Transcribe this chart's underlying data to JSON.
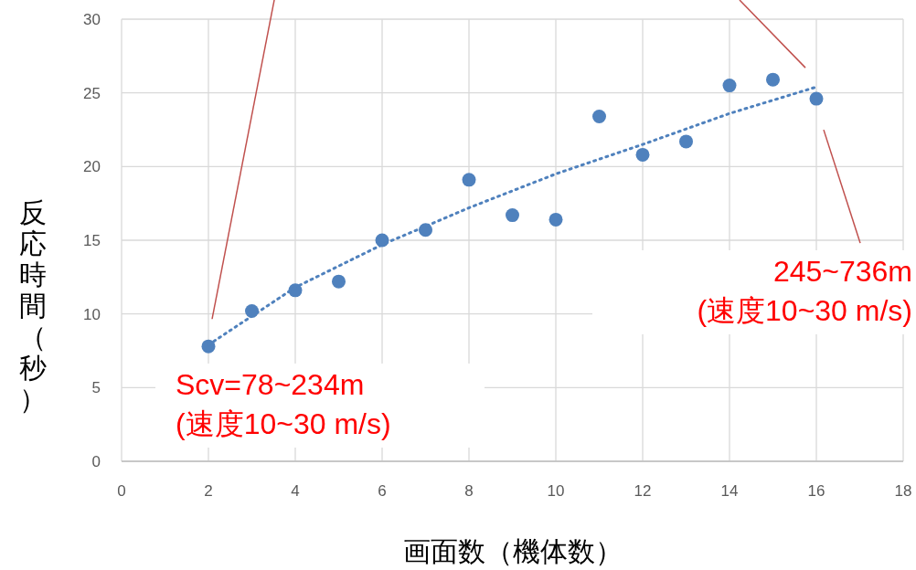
{
  "chart_data": {
    "type": "scatter",
    "xlabel": "画面数（機体数）",
    "ylabel": "反応時間（秒）",
    "xlim": [
      0,
      18
    ],
    "xticks": [
      0,
      2,
      4,
      6,
      8,
      10,
      12,
      14,
      16,
      18
    ],
    "ylim": [
      0,
      30
    ],
    "yticks": [
      0,
      5,
      10,
      15,
      20,
      25,
      30
    ],
    "grid": true,
    "series": [
      {
        "color": "#4f81bd",
        "marker": "circle",
        "x": [
          2,
          3,
          4,
          5,
          6,
          7,
          8,
          9,
          10,
          11,
          12,
          13,
          14,
          15,
          16
        ],
        "values": [
          7.8,
          10.2,
          11.6,
          12.2,
          15.0,
          15.7,
          19.1,
          16.7,
          16.4,
          23.4,
          20.8,
          21.7,
          25.5,
          25.9,
          24.6
        ]
      },
      {
        "type": "line",
        "color": "#4f81bd",
        "line_style": "dotted",
        "x": [
          2,
          4,
          6,
          8,
          10,
          12,
          14,
          16
        ],
        "values": [
          7.9,
          11.8,
          14.7,
          17.2,
          19.5,
          21.5,
          23.6,
          25.4
        ]
      }
    ],
    "annotations": [
      {
        "text": "Scv=78~234m\n(速度10~30 m/s)",
        "x": 2,
        "y": 7.8
      },
      "245~736m\n(速度10~30 m/s)"
    ]
  }
}
